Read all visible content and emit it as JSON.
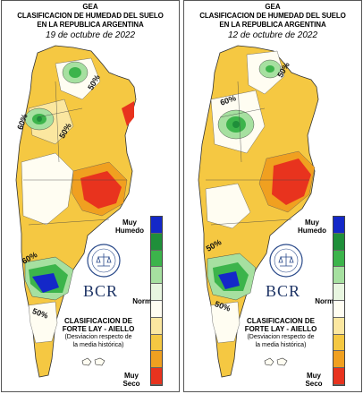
{
  "colors": {
    "very_wet": "#1428c8",
    "wet_dark": "#1f8f3a",
    "wet_mid": "#3cb44b",
    "wet_light": "#a6e0a0",
    "normal_light": "#e8f6e0",
    "normal": "#fffdf2",
    "dry_light": "#fbe7a0",
    "dry_mid": "#f5c842",
    "dry_orange": "#f0a020",
    "very_dry": "#e8331e",
    "seal_blue": "#2a4a8a",
    "frame": "#555555"
  },
  "legend": {
    "wet_label": "Muy Humedo",
    "normal_label": "Normal",
    "dry_label": "Muy Seco",
    "colors": [
      "#1428c8",
      "#1f8f3a",
      "#3cb44b",
      "#a6e0a0",
      "#e8f6e0",
      "#fffdf2",
      "#fbe7a0",
      "#f5c842",
      "#f0a020",
      "#e8331e"
    ]
  },
  "panels": [
    {
      "gea": "GEA",
      "title_line1": "CLASIFICACION DE HUMEDAD DEL SUELO",
      "title_line2": "EN LA REPUBLICA ARGENTINA",
      "date": "19 de octubre de 2022",
      "logo_text": "BCR",
      "classification_line1": "CLASIFICACION DE",
      "classification_line2": "FORTE LAY - AIELLO",
      "note_line1": "(Desviacion respecto de",
      "note_line2": "la media histórica)",
      "percent_labels": [
        "50%",
        "60%",
        "50%",
        "60%",
        "50%"
      ]
    },
    {
      "gea": "GEA",
      "title_line1": "CLASIFICACION DE HUMEDAD DEL SUELO",
      "title_line2": "EN LA REPUBLICA ARGENTINA",
      "date": "12 de octubre de 2022",
      "logo_text": "BCR",
      "classification_line1": "CLASIFICACION DE",
      "classification_line2": "FORTE LAY - AIELLO",
      "note_line1": "(Desviacion respecto de",
      "note_line2": "la media histórica)",
      "percent_labels": [
        "50%",
        "60%",
        "50%",
        "50%"
      ]
    }
  ]
}
